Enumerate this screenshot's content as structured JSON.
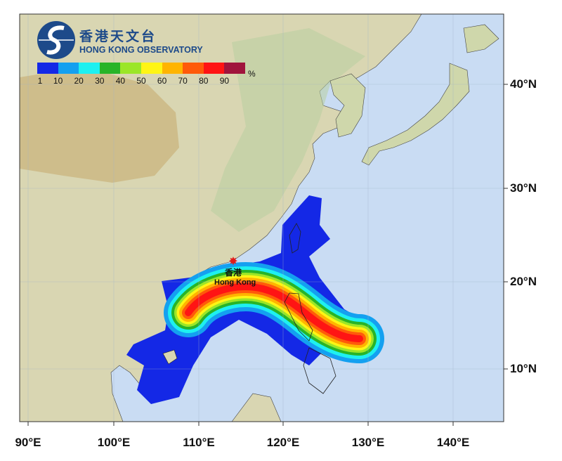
{
  "logo": {
    "name_cn": "香港天文台",
    "name_en": "HONG KONG OBSERVATORY"
  },
  "legend": {
    "unit": "%",
    "ticks": [
      "1",
      "10",
      "20",
      "30",
      "40",
      "50",
      "60",
      "70",
      "80",
      "90"
    ],
    "colors": [
      "#1428e6",
      "#14a0f0",
      "#1ef0f0",
      "#28b428",
      "#9be628",
      "#fff514",
      "#ffb400",
      "#ff5a0a",
      "#ff1414",
      "#a0143c"
    ]
  },
  "map": {
    "ocean_color": "#c9dcf3",
    "lon_labels": [
      "90°E",
      "100°E",
      "110°E",
      "120°E",
      "130°E",
      "140°E"
    ],
    "lat_labels": [
      "40°N",
      "30°N",
      "20°N",
      "10°N"
    ],
    "marker": {
      "icon": "red-star-icon",
      "label_cn": "香港",
      "label_en": "Hong Kong"
    }
  }
}
